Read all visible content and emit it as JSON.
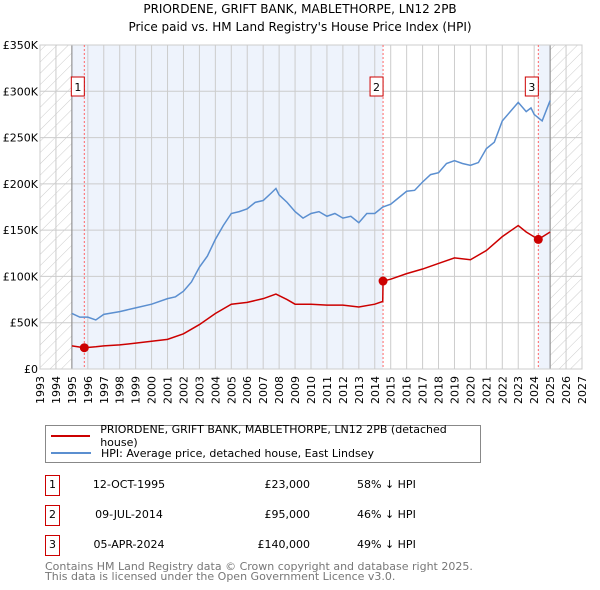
{
  "title": "PRIORDENE, GRIFT BANK, MABLETHORPE, LN12 2PB",
  "subtitle": "Price paid vs. HM Land Registry's House Price Index (HPI)",
  "chart_data": {
    "type": "line",
    "title": "PRIORDENE, GRIFT BANK, MABLETHORPE, LN12 2PB",
    "xlim": [
      1993,
      2027
    ],
    "ylim": [
      0,
      350000
    ],
    "x_ticks": [
      "1993",
      "1994",
      "1995",
      "1996",
      "1997",
      "1998",
      "1999",
      "2000",
      "2001",
      "2002",
      "2003",
      "2004",
      "2005",
      "2006",
      "2007",
      "2008",
      "2009",
      "2010",
      "2011",
      "2012",
      "2013",
      "2014",
      "2015",
      "2016",
      "2017",
      "2018",
      "2019",
      "2020",
      "2021",
      "2022",
      "2023",
      "2024",
      "2025",
      "2026",
      "2027"
    ],
    "y_ticks": [
      {
        "v": 0,
        "label": "£0"
      },
      {
        "v": 50000,
        "label": "£50K"
      },
      {
        "v": 100000,
        "label": "£100K"
      },
      {
        "v": 150000,
        "label": "£150K"
      },
      {
        "v": 200000,
        "label": "£200K"
      },
      {
        "v": 250000,
        "label": "£250K"
      },
      {
        "v": 300000,
        "label": "£300K"
      },
      {
        "v": 350000,
        "label": "£350K"
      }
    ],
    "series": [
      {
        "name": "PRIORDENE, GRIFT BANK, MABLETHORPE, LN12 2PB (detached house)",
        "color": "#cc0000",
        "x": [
          1995,
          1995.78,
          1996.5,
          1997,
          1998,
          1999,
          2000,
          2001,
          2002,
          2003,
          2004,
          2005,
          2006,
          2007,
          2007.8,
          2008.5,
          2009,
          2010,
          2011,
          2012,
          2013,
          2014,
          2014.5,
          2014.52,
          2015,
          2016,
          2017,
          2018,
          2019,
          2020,
          2021,
          2022,
          2023,
          2023.5,
          2024.26,
          2025
        ],
        "y": [
          25000,
          23000,
          24000,
          25000,
          26000,
          28000,
          30000,
          32000,
          38000,
          48000,
          60000,
          70000,
          72000,
          76000,
          81000,
          75000,
          70000,
          70000,
          69000,
          69000,
          67000,
          70000,
          73000,
          95000,
          97000,
          103000,
          108000,
          114000,
          120000,
          118000,
          128000,
          143000,
          155000,
          148000,
          140000,
          148000
        ]
      },
      {
        "name": "HPI: Average price, detached house, East Lindsey",
        "color": "#5b8fd0",
        "x": [
          1995,
          1995.5,
          1996,
          1996.5,
          1997,
          1998,
          1999,
          2000,
          2001,
          2001.5,
          2002,
          2002.5,
          2003,
          2003.5,
          2004,
          2004.5,
          2005,
          2005.5,
          2006,
          2006.5,
          2007,
          2007.5,
          2007.8,
          2008,
          2008.5,
          2009,
          2009.5,
          2010,
          2010.5,
          2011,
          2011.5,
          2012,
          2012.5,
          2013,
          2013.5,
          2014,
          2014.5,
          2015,
          2015.5,
          2016,
          2016.5,
          2017,
          2017.5,
          2018,
          2018.5,
          2019,
          2019.5,
          2020,
          2020.5,
          2021,
          2021.5,
          2022,
          2022.5,
          2023,
          2023.5,
          2023.8,
          2024,
          2024.5,
          2025
        ],
        "y": [
          60000,
          56000,
          56000,
          53000,
          59000,
          62000,
          66000,
          70000,
          76000,
          78000,
          84000,
          94000,
          110000,
          122000,
          140000,
          155000,
          168000,
          170000,
          173000,
          180000,
          182000,
          190000,
          195000,
          188000,
          180000,
          170000,
          163000,
          168000,
          170000,
          165000,
          168000,
          163000,
          165000,
          158000,
          168000,
          168000,
          175000,
          178000,
          185000,
          192000,
          193000,
          202000,
          210000,
          212000,
          222000,
          225000,
          222000,
          220000,
          223000,
          238000,
          245000,
          268000,
          278000,
          288000,
          278000,
          282000,
          275000,
          268000,
          290000
        ]
      }
    ],
    "sales": [
      {
        "label": "1",
        "x": 1995.78,
        "y": 23000
      },
      {
        "label": "2",
        "x": 2014.52,
        "y": 95000
      },
      {
        "label": "3",
        "x": 2024.26,
        "y": 140000
      }
    ],
    "legend_placement": "below"
  },
  "legend": [
    {
      "label": "PRIORDENE, GRIFT BANK, MABLETHORPE, LN12 2PB (detached house)",
      "color": "#cc0000"
    },
    {
      "label": "HPI: Average price, detached house, East Lindsey",
      "color": "#5b8fd0"
    }
  ],
  "transactions": [
    {
      "num": "1",
      "date": "12-OCT-1995",
      "price": "£23,000",
      "hpi": "58% ↓ HPI"
    },
    {
      "num": "2",
      "date": "09-JUL-2014",
      "price": "£95,000",
      "hpi": "46% ↓ HPI"
    },
    {
      "num": "3",
      "date": "05-APR-2024",
      "price": "£140,000",
      "hpi": "49% ↓ HPI"
    }
  ],
  "footer": [
    "Contains HM Land Registry data © Crown copyright and database right 2025.",
    "This data is licensed under the Open Government Licence v3.0."
  ]
}
